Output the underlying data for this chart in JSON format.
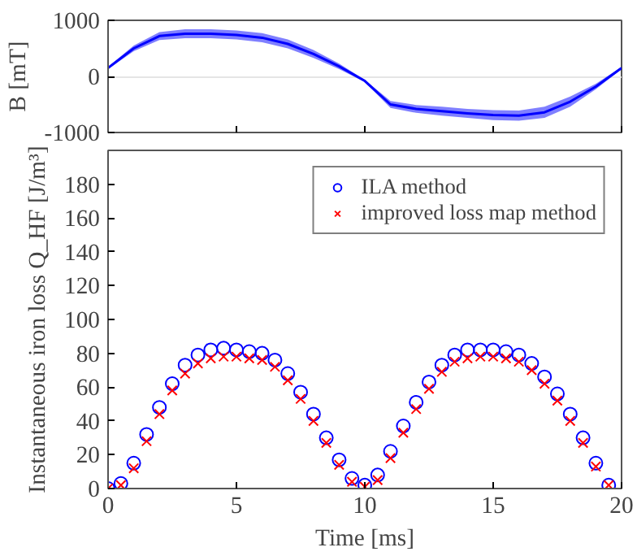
{
  "chart_data": [
    {
      "type": "line",
      "ylabel": "B [mT]",
      "x": [
        0,
        1,
        2,
        3,
        4,
        5,
        6,
        7,
        8,
        9,
        10,
        11,
        12,
        13,
        14,
        15,
        16,
        17,
        18,
        19,
        20
      ],
      "xlim": [
        0,
        20
      ],
      "xticks": [
        0,
        5,
        10,
        15,
        20
      ],
      "ylim": [
        -1000,
        1000
      ],
      "yticks": [
        -1000,
        0,
        1000
      ],
      "tick_labels": "y",
      "grid": "y",
      "legend": false,
      "series": [
        {
          "color": "#0000ff",
          "values": [
            150,
            500,
            720,
            760,
            760,
            740,
            690,
            580,
            400,
            180,
            -80,
            -500,
            -580,
            -620,
            -660,
            -690,
            -700,
            -640,
            -450,
            -180,
            150
          ],
          "lower": [
            130,
            450,
            650,
            680,
            680,
            660,
            610,
            500,
            330,
            130,
            -100,
            -560,
            -650,
            -700,
            -740,
            -780,
            -790,
            -740,
            -540,
            -230,
            130
          ],
          "upper": [
            170,
            550,
            790,
            840,
            840,
            820,
            770,
            660,
            470,
            230,
            -60,
            -440,
            -510,
            -540,
            -580,
            -600,
            -610,
            -540,
            -360,
            -130,
            170
          ]
        }
      ]
    },
    {
      "type": "scatter",
      "xlabel": "Time [ms]",
      "ylabel": "Instantaneous iron loss Q_HF [J/m³]",
      "xlim": [
        0,
        20
      ],
      "xticks": [
        0,
        5,
        10,
        15,
        20
      ],
      "ylim": [
        0,
        200
      ],
      "yticks": [
        0,
        20,
        40,
        60,
        80,
        100,
        120,
        140,
        160,
        180
      ],
      "grid": false,
      "legend": "top right",
      "x": [
        0,
        0.5,
        1,
        1.5,
        2,
        2.5,
        3,
        3.5,
        4,
        4.5,
        5,
        5.5,
        6,
        6.5,
        7,
        7.5,
        8,
        8.5,
        9,
        9.5,
        10,
        10.5,
        11,
        11.5,
        12,
        12.5,
        13,
        13.5,
        14,
        14.5,
        15,
        15.5,
        16,
        16.5,
        17,
        17.5,
        18,
        18.5,
        19,
        19.5
      ],
      "series": [
        {
          "name": "ILA method",
          "color": "#0000ff",
          "marker": "circle",
          "values": [
            0,
            3,
            15,
            32,
            48,
            62,
            73,
            79,
            82,
            83,
            82,
            81,
            80,
            76,
            68,
            57,
            44,
            30,
            17,
            6,
            2,
            8,
            22,
            37,
            51,
            63,
            73,
            79,
            82,
            82,
            82,
            81,
            79,
            74,
            66,
            56,
            44,
            30,
            15,
            2
          ]
        },
        {
          "name": "improved loss map method",
          "color": "#ff0000",
          "marker": "cross",
          "values": [
            0,
            2,
            12,
            28,
            44,
            58,
            68,
            74,
            77,
            78,
            78,
            77,
            76,
            72,
            64,
            53,
            40,
            27,
            14,
            4,
            1,
            5,
            18,
            33,
            47,
            59,
            69,
            75,
            77,
            78,
            78,
            77,
            75,
            70,
            62,
            52,
            40,
            27,
            13,
            2
          ]
        }
      ]
    }
  ]
}
